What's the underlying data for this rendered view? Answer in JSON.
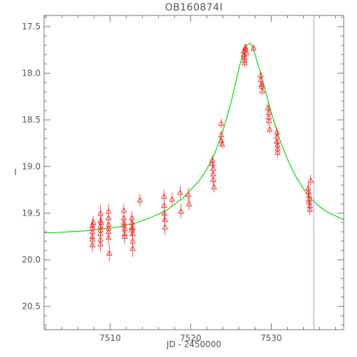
{
  "chart_data": {
    "type": "scatter",
    "title": "OB160874I",
    "xlabel": "JD - 2450000",
    "ylabel": "I",
    "xlim": [
      7501.8,
      7539.0
    ],
    "ylim": [
      20.75,
      17.38
    ],
    "y_inverted": true,
    "x_ticks": [
      7510,
      7520,
      7530
    ],
    "x_tick_labels": [
      "7510",
      "7520",
      "7530"
    ],
    "y_ticks": [
      17.5,
      18.0,
      18.5,
      19.0,
      19.5,
      20.0,
      20.5
    ],
    "y_tick_labels": [
      "17.5",
      "18.0",
      "18.5",
      "19.0",
      "19.5",
      "20.0",
      "20.5"
    ],
    "x_minor_step": 2,
    "y_minor_step": 0.1,
    "grid": false,
    "marker_vline_x": 7535.3,
    "colors": {
      "data": "#ff2a2a",
      "model": "#00e000",
      "vline": "#9a9aff",
      "axes": "#777777"
    },
    "model": {
      "name": "",
      "x": [
        7501.8,
        7503,
        7505,
        7507,
        7509,
        7511,
        7513,
        7515,
        7517,
        7519,
        7521,
        7522,
        7523,
        7524,
        7525,
        7526,
        7526.5,
        7527.0,
        7527.3,
        7527.6,
        7528,
        7529,
        7530,
        7531,
        7532,
        7533,
        7534,
        7535,
        7536,
        7537,
        7538,
        7539
      ],
      "y": [
        19.71,
        19.71,
        19.7,
        19.69,
        19.67,
        19.65,
        19.61,
        19.55,
        19.47,
        19.34,
        19.16,
        19.03,
        18.86,
        18.62,
        18.32,
        17.95,
        17.78,
        17.7,
        17.68,
        17.7,
        17.8,
        18.1,
        18.42,
        18.7,
        18.92,
        19.1,
        19.24,
        19.35,
        19.43,
        19.49,
        19.53,
        19.57
      ]
    },
    "observations": {
      "name": "",
      "marker": "triangle",
      "points": [
        {
          "x": 7507.8,
          "y": 19.63,
          "err": 0.07
        },
        {
          "x": 7507.8,
          "y": 19.66,
          "err": 0.07
        },
        {
          "x": 7507.8,
          "y": 19.7,
          "err": 0.07
        },
        {
          "x": 7507.8,
          "y": 19.75,
          "err": 0.08
        },
        {
          "x": 7507.8,
          "y": 19.78,
          "err": 0.08
        },
        {
          "x": 7507.8,
          "y": 19.84,
          "err": 0.08
        },
        {
          "x": 7507.9,
          "y": 19.6,
          "err": 0.07
        },
        {
          "x": 7508.8,
          "y": 19.5,
          "err": 0.09
        },
        {
          "x": 7508.8,
          "y": 19.58,
          "err": 0.08
        },
        {
          "x": 7508.8,
          "y": 19.64,
          "err": 0.07
        },
        {
          "x": 7508.8,
          "y": 19.68,
          "err": 0.07
        },
        {
          "x": 7508.8,
          "y": 19.72,
          "err": 0.07
        },
        {
          "x": 7508.8,
          "y": 19.78,
          "err": 0.08
        },
        {
          "x": 7508.8,
          "y": 19.83,
          "err": 0.08
        },
        {
          "x": 7508.9,
          "y": 19.6,
          "err": 0.07
        },
        {
          "x": 7509.8,
          "y": 19.48,
          "err": 0.08
        },
        {
          "x": 7509.8,
          "y": 19.55,
          "err": 0.08
        },
        {
          "x": 7509.8,
          "y": 19.62,
          "err": 0.07
        },
        {
          "x": 7509.8,
          "y": 19.66,
          "err": 0.07
        },
        {
          "x": 7509.8,
          "y": 19.7,
          "err": 0.07
        },
        {
          "x": 7509.8,
          "y": 19.76,
          "err": 0.08
        },
        {
          "x": 7509.9,
          "y": 19.93,
          "err": 0.09
        },
        {
          "x": 7511.7,
          "y": 19.47,
          "err": 0.07
        },
        {
          "x": 7511.7,
          "y": 19.55,
          "err": 0.07
        },
        {
          "x": 7511.7,
          "y": 19.6,
          "err": 0.07
        },
        {
          "x": 7511.7,
          "y": 19.63,
          "err": 0.07
        },
        {
          "x": 7511.8,
          "y": 19.67,
          "err": 0.07
        },
        {
          "x": 7511.8,
          "y": 19.72,
          "err": 0.08
        },
        {
          "x": 7511.8,
          "y": 19.75,
          "err": 0.08
        },
        {
          "x": 7512.7,
          "y": 19.55,
          "err": 0.07
        },
        {
          "x": 7512.7,
          "y": 19.6,
          "err": 0.07
        },
        {
          "x": 7512.7,
          "y": 19.65,
          "err": 0.07
        },
        {
          "x": 7512.7,
          "y": 19.68,
          "err": 0.07
        },
        {
          "x": 7512.8,
          "y": 19.72,
          "err": 0.08
        },
        {
          "x": 7512.8,
          "y": 19.8,
          "err": 0.08
        },
        {
          "x": 7512.8,
          "y": 19.88,
          "err": 0.09
        },
        {
          "x": 7512.8,
          "y": 19.66,
          "err": 0.07
        },
        {
          "x": 7513.7,
          "y": 19.36,
          "err": 0.07
        },
        {
          "x": 7516.7,
          "y": 19.32,
          "err": 0.07
        },
        {
          "x": 7516.7,
          "y": 19.42,
          "err": 0.07
        },
        {
          "x": 7516.7,
          "y": 19.5,
          "err": 0.08
        },
        {
          "x": 7516.8,
          "y": 19.57,
          "err": 0.08
        },
        {
          "x": 7516.8,
          "y": 19.65,
          "err": 0.08
        },
        {
          "x": 7517.7,
          "y": 19.35,
          "err": 0.07
        },
        {
          "x": 7518.7,
          "y": 19.28,
          "err": 0.07
        },
        {
          "x": 7518.8,
          "y": 19.48,
          "err": 0.08
        },
        {
          "x": 7519.7,
          "y": 19.3,
          "err": 0.07
        },
        {
          "x": 7519.8,
          "y": 19.4,
          "err": 0.07
        },
        {
          "x": 7522.7,
          "y": 18.93,
          "err": 0.05
        },
        {
          "x": 7522.7,
          "y": 18.97,
          "err": 0.05
        },
        {
          "x": 7522.8,
          "y": 19.02,
          "err": 0.05
        },
        {
          "x": 7522.8,
          "y": 19.08,
          "err": 0.05
        },
        {
          "x": 7522.8,
          "y": 19.14,
          "err": 0.06
        },
        {
          "x": 7522.9,
          "y": 19.22,
          "err": 0.06
        },
        {
          "x": 7523.8,
          "y": 18.54,
          "err": 0.05
        },
        {
          "x": 7523.8,
          "y": 18.66,
          "err": 0.05
        },
        {
          "x": 7523.8,
          "y": 18.72,
          "err": 0.05
        },
        {
          "x": 7523.9,
          "y": 18.76,
          "err": 0.05
        },
        {
          "x": 7526.6,
          "y": 17.76,
          "err": 0.04
        },
        {
          "x": 7526.6,
          "y": 17.8,
          "err": 0.04
        },
        {
          "x": 7526.7,
          "y": 17.83,
          "err": 0.04
        },
        {
          "x": 7526.7,
          "y": 17.86,
          "err": 0.04
        },
        {
          "x": 7526.7,
          "y": 17.89,
          "err": 0.04
        },
        {
          "x": 7526.8,
          "y": 17.72,
          "err": 0.04
        },
        {
          "x": 7526.8,
          "y": 17.74,
          "err": 0.04
        },
        {
          "x": 7526.9,
          "y": 17.78,
          "err": 0.04
        },
        {
          "x": 7527.8,
          "y": 17.73,
          "err": 0.04
        },
        {
          "x": 7528.7,
          "y": 18.02,
          "err": 0.04
        },
        {
          "x": 7528.7,
          "y": 18.07,
          "err": 0.04
        },
        {
          "x": 7528.8,
          "y": 18.12,
          "err": 0.04
        },
        {
          "x": 7528.8,
          "y": 18.14,
          "err": 0.04
        },
        {
          "x": 7528.9,
          "y": 18.19,
          "err": 0.04
        },
        {
          "x": 7529.6,
          "y": 18.37,
          "err": 0.05
        },
        {
          "x": 7529.7,
          "y": 18.42,
          "err": 0.05
        },
        {
          "x": 7529.7,
          "y": 18.47,
          "err": 0.05
        },
        {
          "x": 7529.7,
          "y": 18.51,
          "err": 0.05
        },
        {
          "x": 7529.8,
          "y": 18.6,
          "err": 0.05
        },
        {
          "x": 7530.7,
          "y": 18.63,
          "err": 0.05
        },
        {
          "x": 7530.7,
          "y": 18.68,
          "err": 0.05
        },
        {
          "x": 7530.7,
          "y": 18.73,
          "err": 0.05
        },
        {
          "x": 7530.8,
          "y": 18.77,
          "err": 0.05
        },
        {
          "x": 7530.8,
          "y": 18.81,
          "err": 0.05
        },
        {
          "x": 7530.8,
          "y": 18.85,
          "err": 0.05
        },
        {
          "x": 7534.6,
          "y": 19.23,
          "err": 0.06
        },
        {
          "x": 7534.6,
          "y": 19.27,
          "err": 0.06
        },
        {
          "x": 7534.7,
          "y": 19.31,
          "err": 0.06
        },
        {
          "x": 7534.7,
          "y": 19.35,
          "err": 0.06
        },
        {
          "x": 7534.7,
          "y": 19.38,
          "err": 0.06
        },
        {
          "x": 7534.8,
          "y": 19.42,
          "err": 0.06
        },
        {
          "x": 7534.8,
          "y": 19.46,
          "err": 0.06
        },
        {
          "x": 7534.9,
          "y": 19.15,
          "err": 0.06
        }
      ]
    }
  }
}
